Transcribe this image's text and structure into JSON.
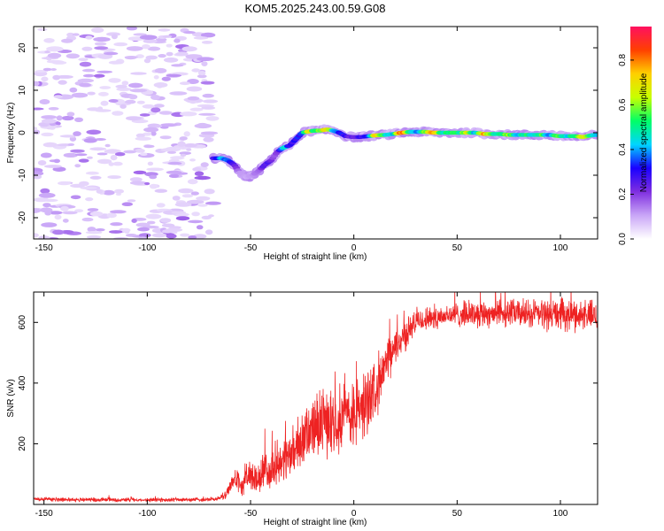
{
  "figure_title": "KOM5.2025.243.00.59.G08",
  "chart_data": [
    {
      "type": "heatmap",
      "title": "KOM5.2025.243.00.59.G08",
      "xlabel": "Height of straight line (km)",
      "ylabel": "Frequency (Hz)",
      "xlim": [
        -155,
        118
      ],
      "ylim": [
        -25,
        25
      ],
      "xticks": [
        -150,
        -100,
        -50,
        0,
        50,
        100
      ],
      "yticks": [
        -20,
        -10,
        0,
        10,
        20
      ],
      "colorbar": {
        "label": "Normalized spectral amplitude",
        "range": [
          0,
          0.95
        ],
        "ticks": [
          0.0,
          0.2,
          0.4,
          0.6,
          0.8
        ],
        "colors": [
          "#ffffff",
          "#c9a6f7",
          "#7f2fe0",
          "#1a00ff",
          "#00d5ff",
          "#00ff66",
          "#c8ff00",
          "#ffd000",
          "#ff4000",
          "#ff1060"
        ]
      },
      "noise_region_x": [
        -155,
        -68
      ],
      "ridge": [
        {
          "x": -68,
          "f": -6.0,
          "a": 0.25
        },
        {
          "x": -64,
          "f": -6.0,
          "a": 0.42
        },
        {
          "x": -61,
          "f": -6.5,
          "a": 0.4
        },
        {
          "x": -58,
          "f": -7.5,
          "a": 0.28
        },
        {
          "x": -55,
          "f": -9.5,
          "a": 0.12
        },
        {
          "x": -52,
          "f": -10.5,
          "a": 0.1
        },
        {
          "x": -49,
          "f": -10.0,
          "a": 0.14
        },
        {
          "x": -46,
          "f": -9.0,
          "a": 0.16
        },
        {
          "x": -43,
          "f": -7.5,
          "a": 0.3
        },
        {
          "x": -40,
          "f": -6.5,
          "a": 0.22
        },
        {
          "x": -37,
          "f": -4.5,
          "a": 0.18
        },
        {
          "x": -34,
          "f": -3.5,
          "a": 0.5
        },
        {
          "x": -31,
          "f": -3.0,
          "a": 0.3
        },
        {
          "x": -28,
          "f": -1.5,
          "a": 0.32
        },
        {
          "x": -25,
          "f": 0.0,
          "a": 0.35
        },
        {
          "x": -22,
          "f": 0.3,
          "a": 0.78
        },
        {
          "x": -19,
          "f": 0.5,
          "a": 0.55
        },
        {
          "x": -16,
          "f": 0.5,
          "a": 0.6
        },
        {
          "x": -13,
          "f": 0.8,
          "a": 0.82
        },
        {
          "x": -10,
          "f": 0.5,
          "a": 0.45
        },
        {
          "x": -7,
          "f": 0.0,
          "a": 0.35
        },
        {
          "x": -4,
          "f": -0.8,
          "a": 0.3
        },
        {
          "x": -1,
          "f": -1.0,
          "a": 0.25
        },
        {
          "x": 3,
          "f": -1.0,
          "a": 0.28
        },
        {
          "x": 7,
          "f": -0.8,
          "a": 0.35
        },
        {
          "x": 11,
          "f": -0.6,
          "a": 0.8
        },
        {
          "x": 15,
          "f": -0.5,
          "a": 0.5
        },
        {
          "x": 19,
          "f": -0.3,
          "a": 0.42
        },
        {
          "x": 23,
          "f": 0.0,
          "a": 0.88
        },
        {
          "x": 27,
          "f": 0.2,
          "a": 0.55
        },
        {
          "x": 31,
          "f": 0.2,
          "a": 0.4
        },
        {
          "x": 35,
          "f": 0.2,
          "a": 0.62
        },
        {
          "x": 39,
          "f": 0.0,
          "a": 0.82
        },
        {
          "x": 43,
          "f": 0.0,
          "a": 0.45
        },
        {
          "x": 47,
          "f": 0.0,
          "a": 0.6
        },
        {
          "x": 51,
          "f": 0.0,
          "a": 0.5
        },
        {
          "x": 55,
          "f": 0.0,
          "a": 0.7
        },
        {
          "x": 59,
          "f": 0.0,
          "a": 0.4
        },
        {
          "x": 63,
          "f": -0.3,
          "a": 0.82
        },
        {
          "x": 67,
          "f": -0.3,
          "a": 0.55
        },
        {
          "x": 71,
          "f": -0.3,
          "a": 0.5
        },
        {
          "x": 75,
          "f": -0.5,
          "a": 0.66
        },
        {
          "x": 79,
          "f": -0.5,
          "a": 0.42
        },
        {
          "x": 83,
          "f": -0.5,
          "a": 0.55
        },
        {
          "x": 87,
          "f": -0.5,
          "a": 0.48
        },
        {
          "x": 91,
          "f": -0.5,
          "a": 0.58
        },
        {
          "x": 95,
          "f": -0.5,
          "a": 0.4
        },
        {
          "x": 99,
          "f": -0.8,
          "a": 0.62
        },
        {
          "x": 103,
          "f": -0.8,
          "a": 0.45
        },
        {
          "x": 107,
          "f": -0.8,
          "a": 0.55
        },
        {
          "x": 111,
          "f": -1.0,
          "a": 0.72
        },
        {
          "x": 115,
          "f": -0.6,
          "a": 0.5
        },
        {
          "x": 118,
          "f": -0.5,
          "a": 0.4
        }
      ]
    },
    {
      "type": "line",
      "xlabel": "Height of straight line (km)",
      "ylabel": "SNR (v/v)",
      "xlim": [
        -155,
        118
      ],
      "ylim": [
        0,
        700
      ],
      "xticks": [
        -150,
        -100,
        -50,
        0,
        50,
        100
      ],
      "yticks": [
        200,
        400,
        600
      ],
      "line_color": "#ee2222",
      "series": [
        {
          "name": "SNR",
          "x": [
            -155,
            -130,
            -100,
            -75,
            -66,
            -62,
            -60,
            -58,
            -56,
            -54,
            -52,
            -50,
            -48,
            -46,
            -44,
            -42,
            -40,
            -38,
            -35,
            -30,
            -25,
            -20,
            -15,
            -10,
            -5,
            0,
            5,
            10,
            15,
            20,
            25,
            30,
            35,
            40,
            50,
            60,
            70,
            80,
            90,
            100,
            110,
            118
          ],
          "baseline": [
            18,
            16,
            15,
            16,
            18,
            30,
            60,
            85,
            75,
            60,
            95,
            100,
            75,
            80,
            110,
            95,
            120,
            135,
            140,
            170,
            210,
            250,
            270,
            280,
            300,
            290,
            330,
            380,
            450,
            520,
            560,
            600,
            610,
            620,
            625,
            630,
            632,
            630,
            628,
            625,
            625,
            622
          ],
          "noise": [
            6,
            6,
            6,
            6,
            6,
            12,
            20,
            30,
            30,
            30,
            50,
            55,
            40,
            45,
            55,
            50,
            55,
            60,
            60,
            70,
            80,
            90,
            95,
            95,
            100,
            100,
            100,
            90,
            70,
            50,
            45,
            35,
            35,
            35,
            35,
            40,
            40,
            40,
            45,
            45,
            45,
            45
          ]
        }
      ]
    }
  ]
}
